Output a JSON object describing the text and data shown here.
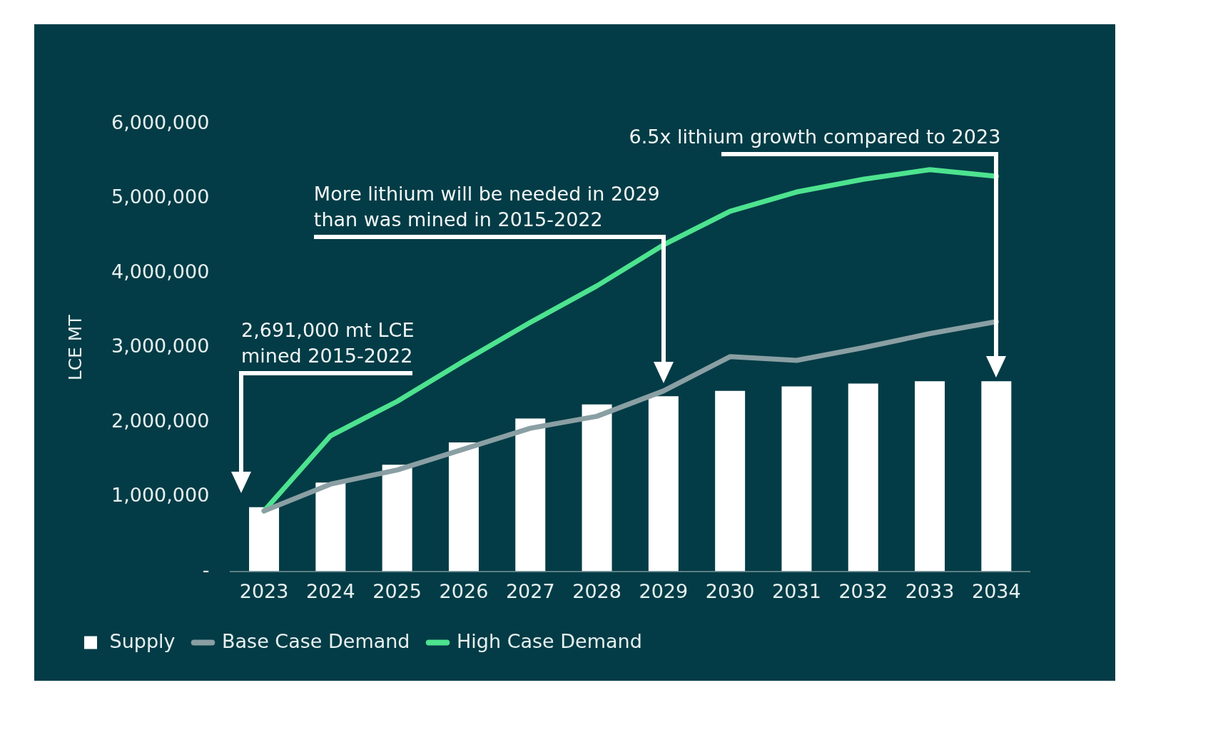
{
  "chart_data": {
    "type": "bar",
    "ylabel": "LCE MT",
    "categories": [
      "2023",
      "2024",
      "2025",
      "2026",
      "2027",
      "2028",
      "2029",
      "2030",
      "2031",
      "2032",
      "2033",
      "2034"
    ],
    "series": [
      {
        "name": "Supply",
        "color": "#ffffff",
        "values": [
          860000,
          1190000,
          1430000,
          1730000,
          2050000,
          2240000,
          2350000,
          2420000,
          2480000,
          2520000,
          2550000,
          2550000
        ]
      },
      {
        "name": "Base Case Demand",
        "type": "line",
        "color": "#8a9fa3",
        "values": [
          810000,
          1170000,
          1360000,
          1640000,
          1920000,
          2080000,
          2420000,
          2880000,
          2830000,
          3000000,
          3190000,
          3350000
        ]
      },
      {
        "name": "High Case Demand",
        "type": "line",
        "color": "#4de38f",
        "values": [
          810000,
          1820000,
          2280000,
          2820000,
          3340000,
          3830000,
          4380000,
          4830000,
          5090000,
          5260000,
          5390000,
          5300000
        ]
      }
    ],
    "ylim": [
      0,
      6000000
    ],
    "yticks": [
      {
        "value": 0,
        "label": "-"
      },
      {
        "value": 1000000,
        "label": "1,000,000"
      },
      {
        "value": 2000000,
        "label": "2,000,000"
      },
      {
        "value": 3000000,
        "label": "3,000,000"
      },
      {
        "value": 4000000,
        "label": "4,000,000"
      },
      {
        "value": 5000000,
        "label": "5,000,000"
      },
      {
        "value": 6000000,
        "label": "6,000,000"
      }
    ],
    "annotations": [
      "2,691,000 mt LCE mined 2015-2022",
      "More lithium will be needed in 2029 than was mined in 2015-2022",
      "6.5x lithium growth compared to 2023"
    ],
    "grid": false,
    "legend": "bottom left",
    "marker": "none",
    "line_style": "solid"
  }
}
